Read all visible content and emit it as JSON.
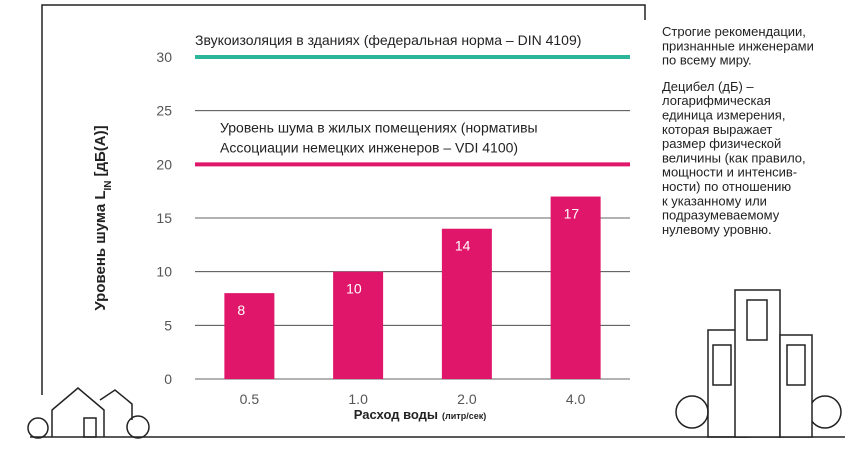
{
  "chart_data": {
    "type": "bar",
    "categories": [
      "0.5",
      "1.0",
      "2.0",
      "4.0"
    ],
    "values": [
      8,
      10,
      14,
      17
    ],
    "color": "#e0166a",
    "label_color": "#ffffff",
    "ylim": [
      0,
      30
    ],
    "yticks": [
      0,
      5,
      10,
      15,
      20,
      25,
      30
    ],
    "grid": true,
    "y_label": {
      "main": "Уровень шума L",
      "sub": "IN",
      "unit": "[дБ(A)]"
    },
    "x_label": {
      "main": "Расход воды",
      "unit": "(литр/сек)"
    },
    "reference_lines": [
      {
        "value": 30,
        "color": "#2bb59a",
        "label": [
          "Звукоизоляция в зданиях (федеральная норма – DIN 4109)"
        ]
      },
      {
        "value": 20,
        "color": "#e0166a",
        "label": [
          "Уровень шума в жилых помещениях (нормативы",
          "Ассоциации немецких инженеров – VDI 4100)"
        ]
      }
    ],
    "notes": [
      [
        "Строгие рекомендации,",
        "признанные инженерами",
        "по всему миру."
      ],
      [
        "Децибел (дБ) –",
        "логарифмическая",
        "единица измерения,",
        "которая выражает",
        "размер физической",
        "величины (как правило,",
        "мощности и интенсив-",
        "ности) по отношению",
        "к указанному или",
        "подразумеваемому",
        "нулевому уровню."
      ]
    ]
  }
}
